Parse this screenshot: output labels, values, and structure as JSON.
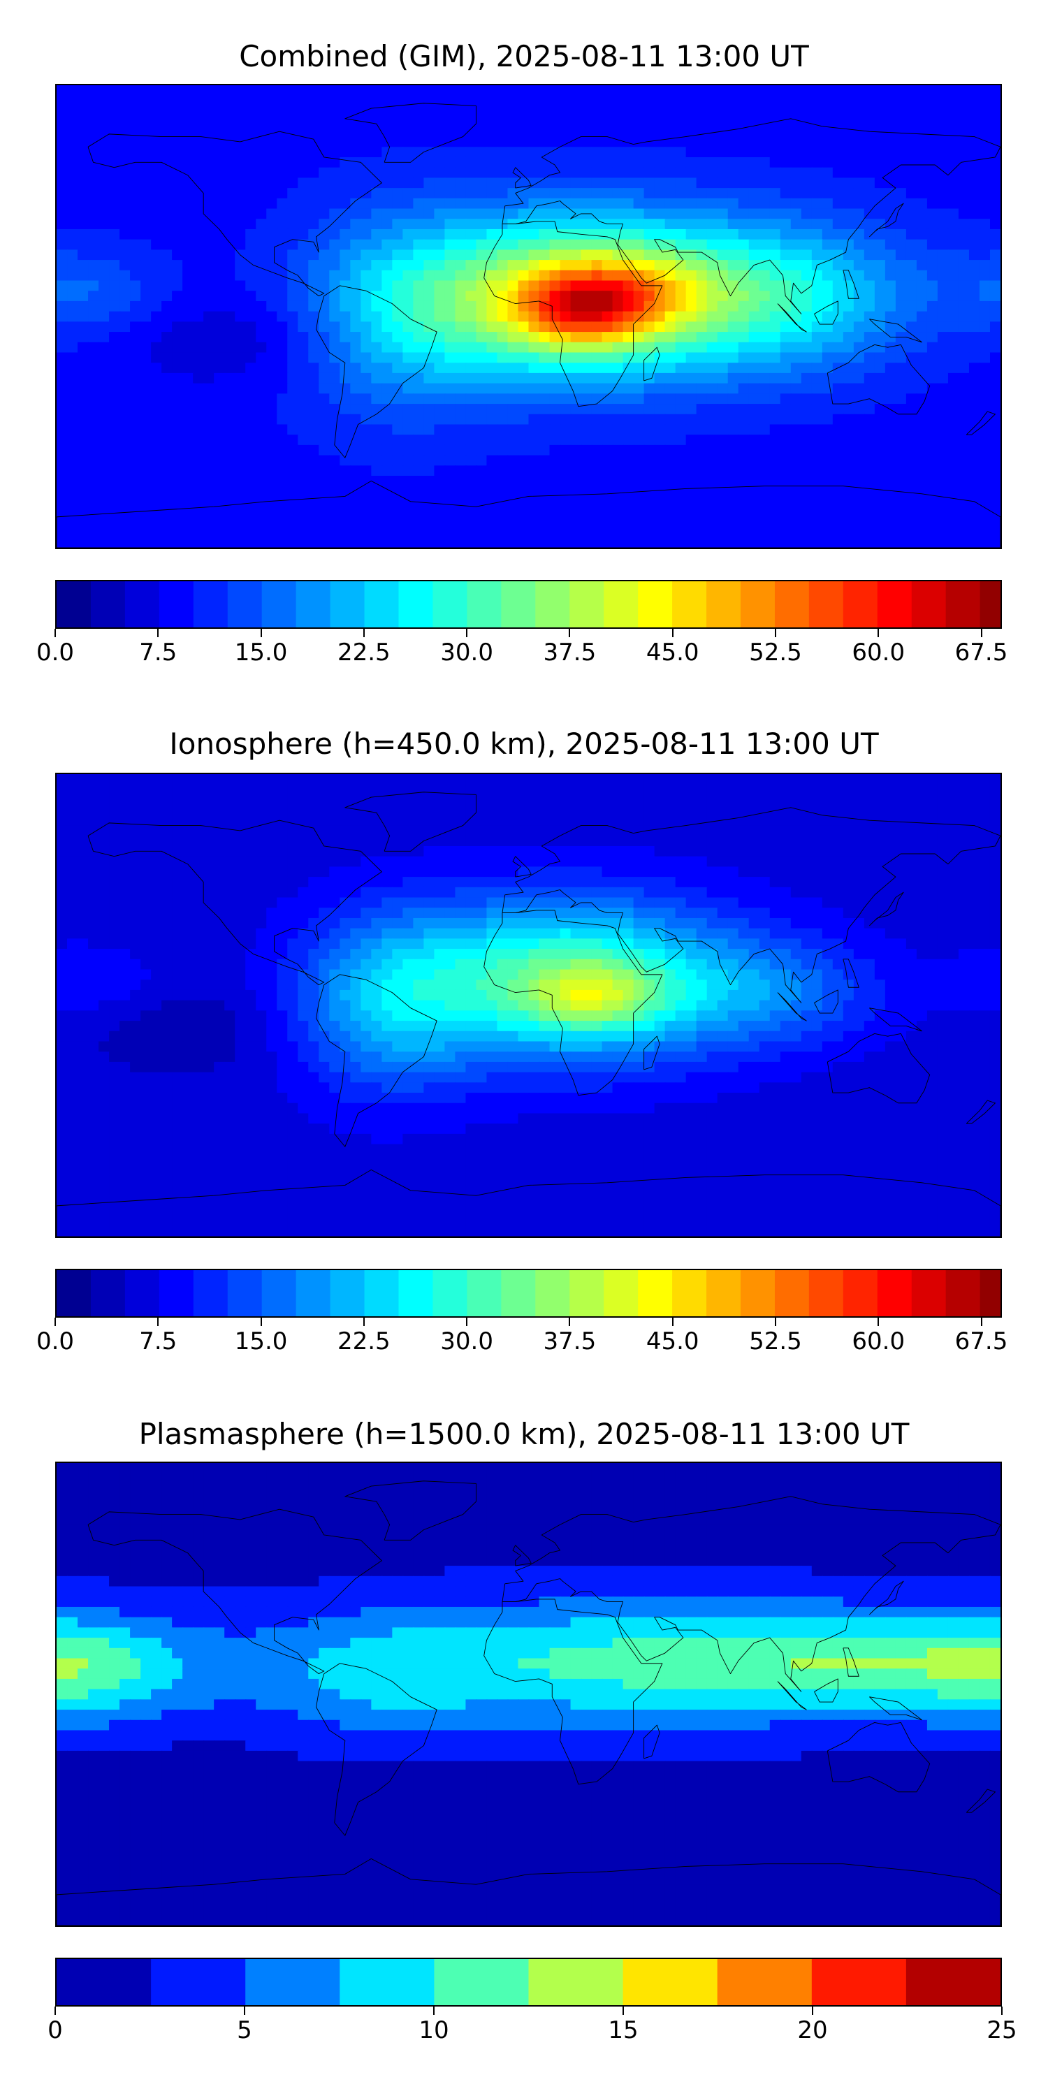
{
  "panels": [
    {
      "title": "Combined (GIM), 2025-08-11 13:00 UT",
      "colorbar": {
        "min": 0.0,
        "max": 69.0,
        "step": 2.5,
        "ticks": [
          "0.0",
          "7.5",
          "15.0",
          "22.5",
          "30.0",
          "37.5",
          "45.0",
          "52.5",
          "60.0",
          "67.5"
        ],
        "tick_values": [
          0.0,
          7.5,
          15.0,
          22.5,
          30.0,
          37.5,
          45.0,
          52.5,
          60.0,
          67.5
        ]
      },
      "colormap": "jet",
      "field": {
        "background": 9,
        "features": [
          {
            "lon": 20,
            "lat": 8,
            "slon": 45,
            "slat": 22,
            "amp": 33
          },
          {
            "lon": 20,
            "lat": 2,
            "slon": 18,
            "slat": 10,
            "amp": 18
          },
          {
            "lon": 35,
            "lat": 10,
            "slon": 22,
            "slat": 10,
            "amp": 10
          },
          {
            "lon": -50,
            "lat": 0,
            "slon": 28,
            "slat": 28,
            "amp": 10
          },
          {
            "lon": 100,
            "lat": 8,
            "slon": 35,
            "slat": 20,
            "amp": 14
          },
          {
            "lon": -170,
            "lat": 10,
            "slon": 22,
            "slat": 12,
            "amp": 6
          },
          {
            "lon": -110,
            "lat": -10,
            "slon": 30,
            "slat": 12,
            "amp": -4
          }
        ]
      }
    },
    {
      "title": "Ionosphere  (h=450.0 km), 2025-08-11 13:00 UT",
      "colorbar": {
        "min": 0.0,
        "max": 69.0,
        "step": 2.5,
        "ticks": [
          "0.0",
          "7.5",
          "15.0",
          "22.5",
          "30.0",
          "37.5",
          "45.0",
          "52.5",
          "60.0",
          "67.5"
        ],
        "tick_values": [
          0.0,
          7.5,
          15.0,
          22.5,
          30.0,
          37.5,
          45.0,
          52.5,
          60.0,
          67.5
        ]
      },
      "colormap": "jet",
      "field": {
        "background": 6,
        "features": [
          {
            "lon": 15,
            "lat": 10,
            "slon": 45,
            "slat": 22,
            "amp": 26
          },
          {
            "lon": 25,
            "lat": 3,
            "slon": 18,
            "slat": 9,
            "amp": 12
          },
          {
            "lon": -55,
            "lat": 0,
            "slon": 25,
            "slat": 25,
            "amp": 12
          },
          {
            "lon": 95,
            "lat": 5,
            "slon": 30,
            "slat": 15,
            "amp": 8
          },
          {
            "lon": -170,
            "lat": 10,
            "slon": 20,
            "slat": 10,
            "amp": 4
          },
          {
            "lon": -130,
            "lat": -10,
            "slon": 25,
            "slat": 12,
            "amp": -3
          }
        ]
      }
    },
    {
      "title": "Plasmasphere (h=1500.0 km), 2025-08-11 13:00 UT",
      "colorbar": {
        "min": 0,
        "max": 25,
        "step": 2.5,
        "ticks": [
          "0",
          "5",
          "10",
          "15",
          "20",
          "25"
        ],
        "tick_values": [
          0,
          5,
          10,
          15,
          20,
          25
        ]
      },
      "colormap": "jet",
      "field": {
        "background": 1.5,
        "features": [
          {
            "lon": 40,
            "lat": 12,
            "slon": 90,
            "slat": 18,
            "amp": 9
          },
          {
            "lon": 120,
            "lat": 14,
            "slon": 40,
            "slat": 12,
            "amp": 4
          },
          {
            "lon": -170,
            "lat": 10,
            "slon": 35,
            "slat": 15,
            "amp": 8
          },
          {
            "lon": -60,
            "lat": 5,
            "slon": 30,
            "slat": 18,
            "amp": 3
          }
        ]
      }
    }
  ]
}
